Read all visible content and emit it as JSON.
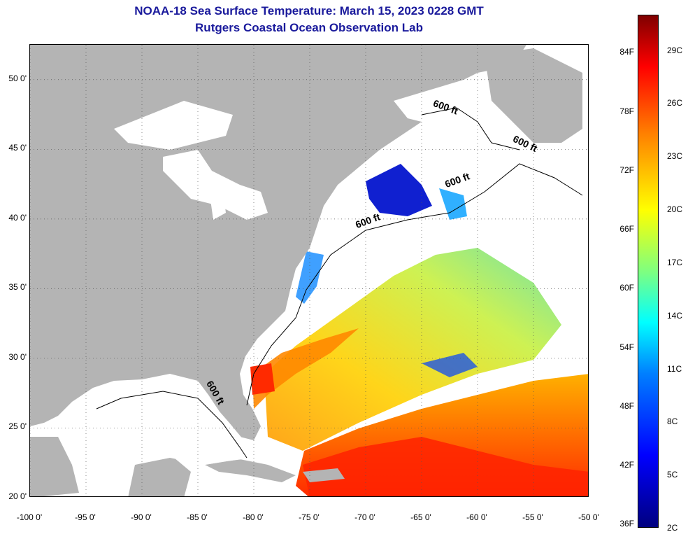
{
  "title": {
    "line1": "NOAA-18 Sea Surface Temperature:  March 15, 2023 0228 GMT",
    "line2": "Rutgers Coastal Ocean Observation Lab"
  },
  "map": {
    "lon_range": [
      -100,
      -50
    ],
    "lat_range": [
      20,
      52.5
    ],
    "lat_ticks": [
      {
        "value": 20,
        "label": "20 0'"
      },
      {
        "value": 25,
        "label": "25 0'"
      },
      {
        "value": 30,
        "label": "30 0'"
      },
      {
        "value": 35,
        "label": "35 0'"
      },
      {
        "value": 40,
        "label": "40 0'"
      },
      {
        "value": 45,
        "label": "45 0'"
      },
      {
        "value": 50,
        "label": "50 0'"
      }
    ],
    "lon_ticks": [
      {
        "value": -100,
        "label": "-100 0'"
      },
      {
        "value": -95,
        "label": "-95 0'"
      },
      {
        "value": -90,
        "label": "-90 0'"
      },
      {
        "value": -85,
        "label": "-85 0'"
      },
      {
        "value": -80,
        "label": "-80 0'"
      },
      {
        "value": -75,
        "label": "-75 0'"
      },
      {
        "value": -70,
        "label": "-70 0'"
      },
      {
        "value": -65,
        "label": "-65 0'"
      },
      {
        "value": -60,
        "label": "-60 0'"
      },
      {
        "value": -55,
        "label": "-55 0'"
      },
      {
        "value": -50,
        "label": "-50 0'"
      }
    ],
    "isobath_labels": [
      {
        "text": "600 ft",
        "lon": -83.5,
        "lat": 28.5,
        "angle": 60
      },
      {
        "text": "600 ft",
        "lon": -71.0,
        "lat": 39.9,
        "angle": -20
      },
      {
        "text": "600 ft",
        "lon": -63.0,
        "lat": 42.8,
        "angle": -20
      },
      {
        "text": "600 ft",
        "lon": -63.7,
        "lat": 48.7,
        "angle": 20
      },
      {
        "text": "600 ft",
        "lon": -56.5,
        "lat": 46.1,
        "angle": 25
      }
    ],
    "colors": {
      "land": "#b4b4b4",
      "cloud": "#ffffff",
      "lakes": "#ffffff",
      "grid": "#555555"
    }
  },
  "colorbar": {
    "fahrenheit": [
      {
        "value": 36,
        "label": "36F"
      },
      {
        "value": 42,
        "label": "42F"
      },
      {
        "value": 48,
        "label": "48F"
      },
      {
        "value": 54,
        "label": "54F"
      },
      {
        "value": 60,
        "label": "60F"
      },
      {
        "value": 66,
        "label": "66F"
      },
      {
        "value": 72,
        "label": "72F"
      },
      {
        "value": 78,
        "label": "78F"
      },
      {
        "value": 84,
        "label": "84F"
      }
    ],
    "celsius": [
      {
        "value": 2,
        "label": "2C"
      },
      {
        "value": 5,
        "label": "5C"
      },
      {
        "value": 8,
        "label": "8C"
      },
      {
        "value": 11,
        "label": "11C"
      },
      {
        "value": 14,
        "label": "14C"
      },
      {
        "value": 17,
        "label": "17C"
      },
      {
        "value": 20,
        "label": "20C"
      },
      {
        "value": 23,
        "label": "23C"
      },
      {
        "value": 26,
        "label": "26C"
      },
      {
        "value": 29,
        "label": "29C"
      }
    ],
    "range_c": [
      2,
      31
    ]
  }
}
